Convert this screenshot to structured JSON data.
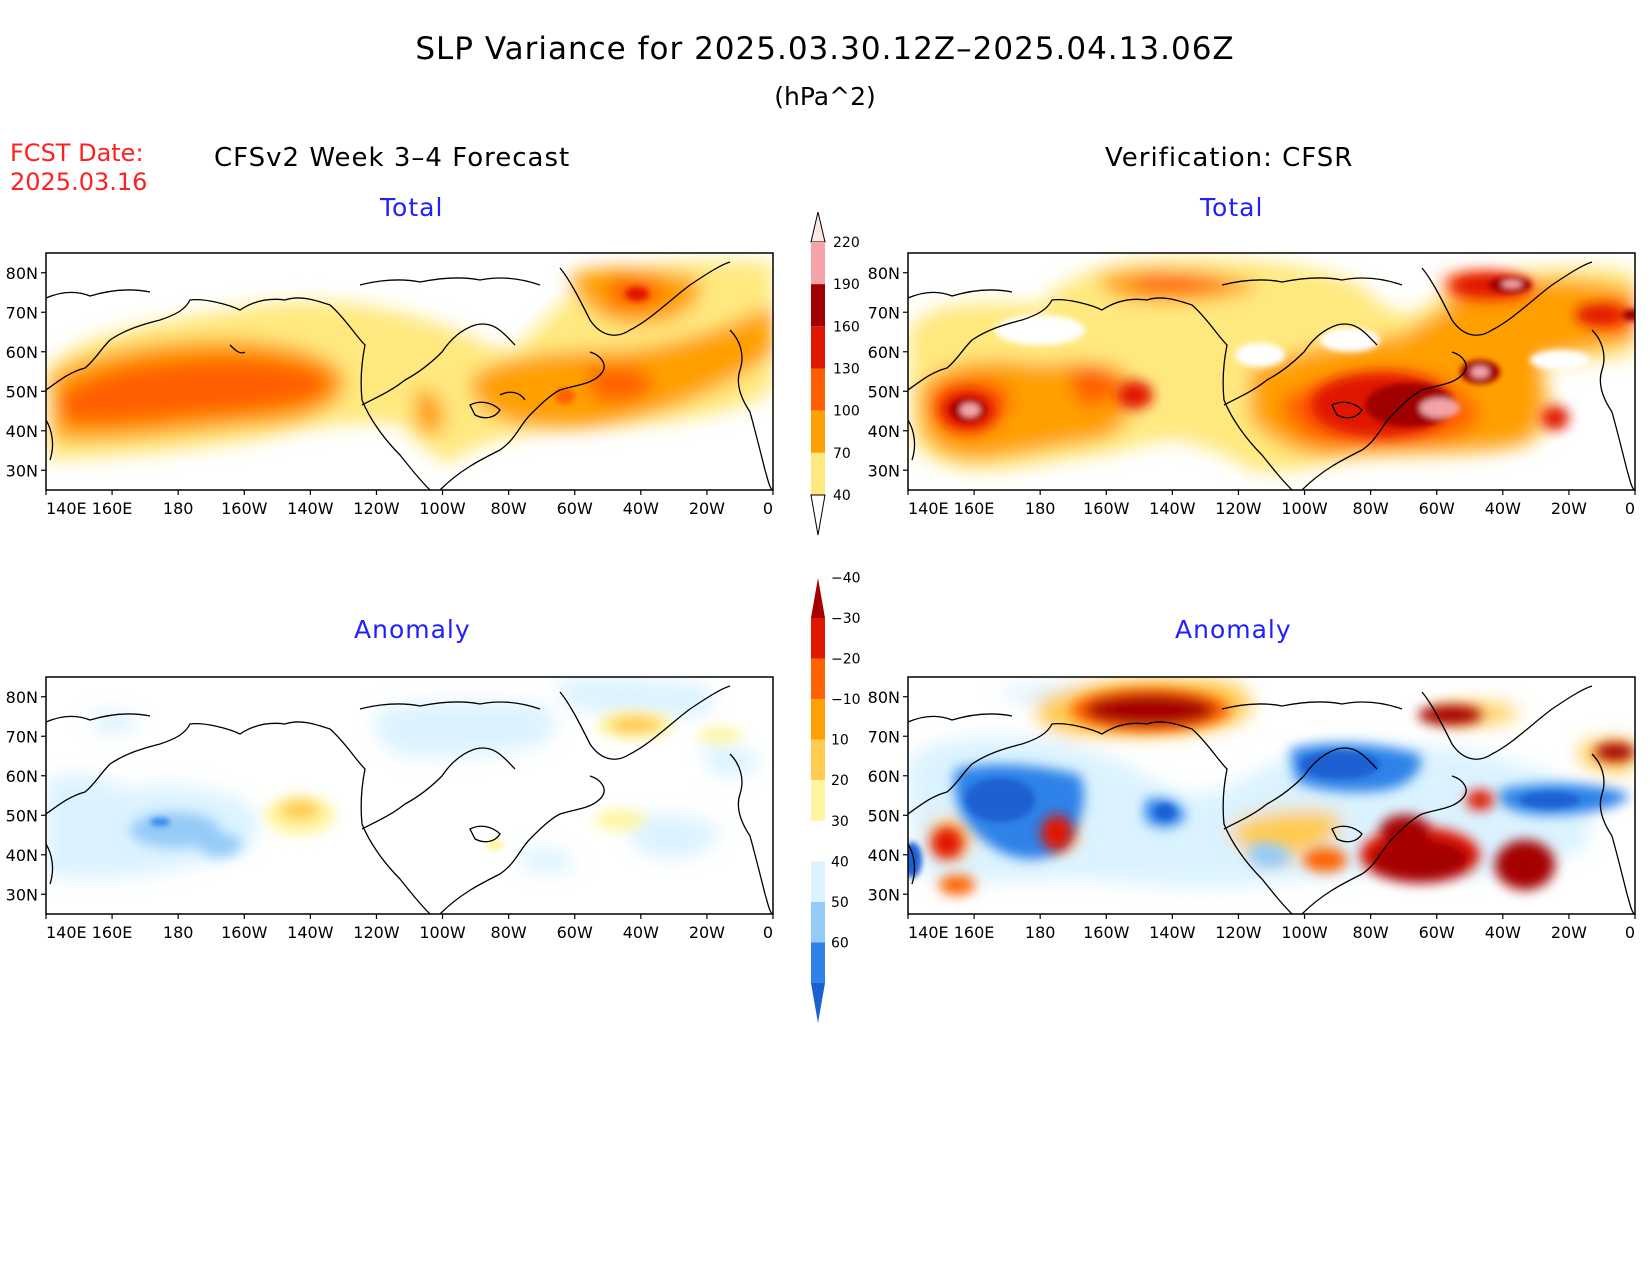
{
  "figure": {
    "title": "SLP Variance for 2025.03.30.12Z–2025.04.13.06Z",
    "units": "(hPa^2)",
    "fcst_label": "FCST Date:",
    "fcst_date": "2025.03.16",
    "left_header": "CFSv2 Week 3–4 Forecast",
    "right_header": "Verification: CFSR"
  },
  "panels": [
    {
      "id": "forecast-total",
      "title": "Total"
    },
    {
      "id": "verification-total",
      "title": "Total"
    },
    {
      "id": "forecast-anomaly",
      "title": "Anomaly"
    },
    {
      "id": "verification-anomaly",
      "title": "Anomaly"
    }
  ],
  "map_axes": {
    "lon_ticks": [
      "140E",
      "160E",
      "180",
      "160W",
      "140W",
      "120W",
      "100W",
      "80W",
      "60W",
      "40W",
      "20W",
      "0"
    ],
    "lat_ticks": [
      "80N",
      "70N",
      "60N",
      "50N",
      "40N",
      "30N"
    ],
    "lon_range": [
      140,
      360
    ],
    "lat_range": [
      25,
      85
    ]
  },
  "colorbar_total": {
    "levels": [
      40,
      70,
      100,
      130,
      160,
      190,
      220
    ],
    "labels": [
      "40",
      "70",
      "100",
      "130",
      "160",
      "190",
      "220"
    ],
    "colors": [
      "#ffffff",
      "#ffe97f",
      "#ffa000",
      "#ff5f00",
      "#e11800",
      "#a00000",
      "#f4a3a8",
      "#fde6e8"
    ]
  },
  "colorbar_anomaly": {
    "levels": [
      -40,
      -30,
      -20,
      -10,
      10,
      20,
      30,
      40,
      50,
      60
    ],
    "labels": [
      "−40",
      "−30",
      "−20",
      "−10",
      "10",
      "20",
      "30",
      "40",
      "50",
      "60"
    ],
    "colors": [
      "#1a60d2",
      "#2f82e8",
      "#95cbf8",
      "#dbf3ff",
      "#ffffff",
      "#fff5a0",
      "#ffcb50",
      "#ffa100",
      "#ff6200",
      "#e11800",
      "#a50000"
    ]
  }
}
